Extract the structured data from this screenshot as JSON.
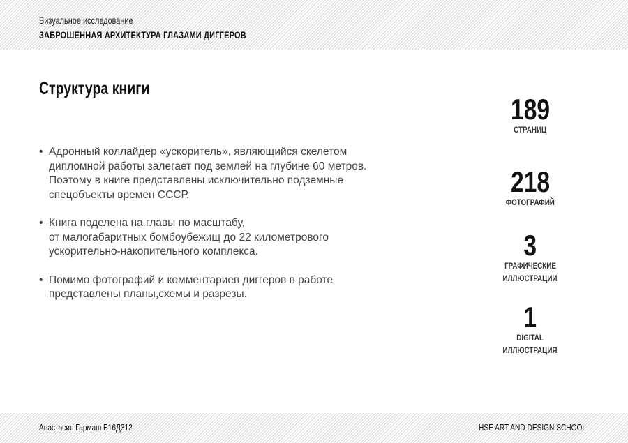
{
  "header": {
    "subtitle": "Визуальное исследование",
    "title": "ЗАБРОШЕННАЯ АРХИТЕКТУРА ГЛАЗАМИ ДИГГЕРОВ"
  },
  "main": {
    "heading": "Структура книги",
    "bullets": [
      [
        "Адронный коллайдер «ускоритель», являющийся скелетом",
        "дипломной работы залегает под землей на глубине 60 метров.",
        "Поэтому в книге представлены исключительно подземные",
        "спецобъекты времен СССР."
      ],
      [
        "Книга поделена на главы по масштабу,",
        "от малогабаритных бомбоубежищ до 22 километрового",
        "ускорительно-накопительного комплекса."
      ],
      [
        "Помимо фотографий и комментариев диггеров в работе",
        "представлены планы,схемы и разрезы."
      ]
    ]
  },
  "stats": [
    {
      "value": "189",
      "label": [
        "СТРАНИЦ"
      ]
    },
    {
      "value": "218",
      "label": [
        "ФОТОГРАФИЙ"
      ]
    },
    {
      "value": "3",
      "label": [
        "ГРАФИЧЕСКИЕ",
        "ИЛЛЮСТРАЦИИ"
      ]
    },
    {
      "value": "1",
      "label": [
        "DIGITAL",
        "ИЛЛЮСТРАЦИЯ"
      ]
    }
  ],
  "footer": {
    "author": "Анастасия Гармаш Б16Д312",
    "school": "HSE ART AND DESIGN SCHOOL"
  }
}
